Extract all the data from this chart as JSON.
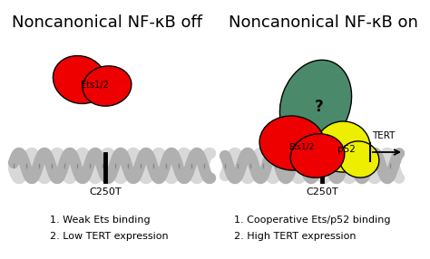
{
  "title_left": "Noncanonical NF-κB off",
  "title_right": "Noncanonical NF-κB on",
  "left_label": "C250T",
  "right_label": "C250T",
  "left_items": [
    "1. Weak Ets binding",
    "2. Low TERT expression"
  ],
  "right_items": [
    "1. Cooperative Ets/p52 binding",
    "2. High TERT expression"
  ],
  "tert_label": "TERT",
  "ets_label": "Ets1/2",
  "p52_label": "p52",
  "question_mark": "?",
  "color_red": "#ee0000",
  "color_yellow": "#eeee00",
  "color_green": "#4a8a6a",
  "color_dna_outer": "#b0b0b0",
  "color_dna_inner": "#d8d8d8",
  "background": "#ffffff",
  "title_fontsize": 13,
  "label_fontsize": 8,
  "annotation_fontsize": 8
}
